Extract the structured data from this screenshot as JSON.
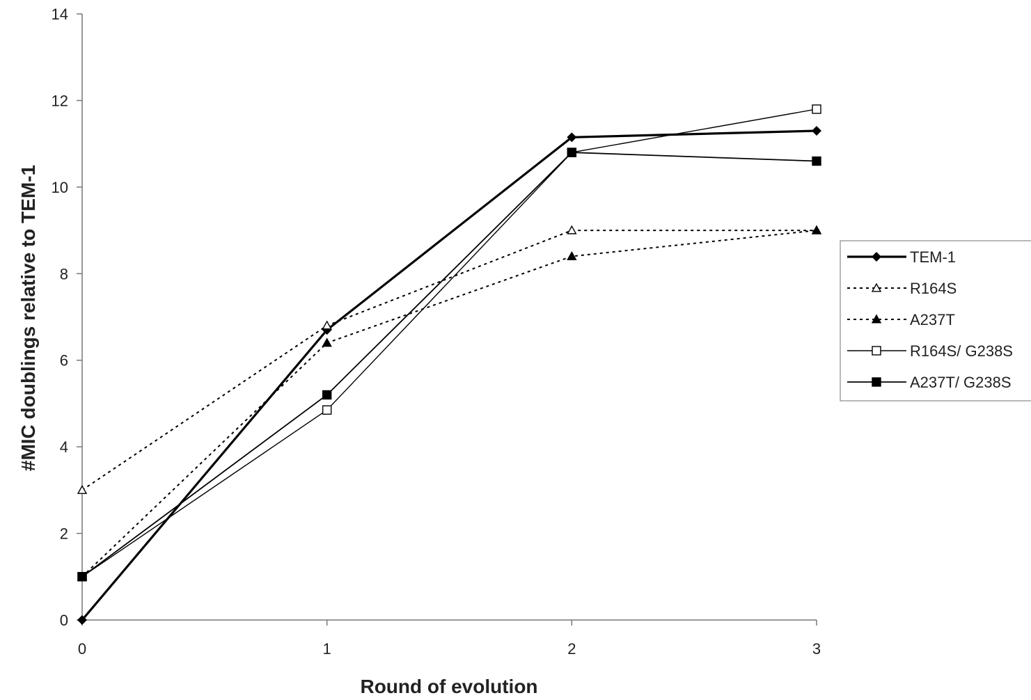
{
  "chart_data": {
    "type": "line",
    "title": "",
    "xlabel": "Round of evolution",
    "ylabel": "#MIC doublings relative to TEM-1",
    "x": [
      0,
      1,
      2,
      3
    ],
    "xlim": [
      0,
      3
    ],
    "ylim": [
      0,
      14
    ],
    "yticks": [
      0,
      2,
      4,
      6,
      8,
      10,
      12,
      14
    ],
    "grid": false,
    "legend_position": "right",
    "series": [
      {
        "name": "TEM-1",
        "values": [
          0,
          6.7,
          11.15,
          11.3
        ],
        "marker": "diamond-filled",
        "line": "solid-thick",
        "color": "#000000"
      },
      {
        "name": "R164S",
        "values": [
          3,
          6.8,
          9.0,
          9.0
        ],
        "marker": "triangle-open",
        "line": "dotted",
        "color": "#000000"
      },
      {
        "name": "A237T",
        "values": [
          1,
          6.4,
          8.4,
          9.0
        ],
        "marker": "triangle-filled",
        "line": "dotted",
        "color": "#000000"
      },
      {
        "name": "R164S/ G238S",
        "values": [
          1,
          4.85,
          10.8,
          11.8
        ],
        "marker": "square-open",
        "line": "solid-thin",
        "color": "#000000"
      },
      {
        "name": "A237T/ G238S",
        "values": [
          1,
          5.2,
          10.8,
          10.6
        ],
        "marker": "square-filled",
        "line": "solid",
        "color": "#000000"
      }
    ]
  }
}
